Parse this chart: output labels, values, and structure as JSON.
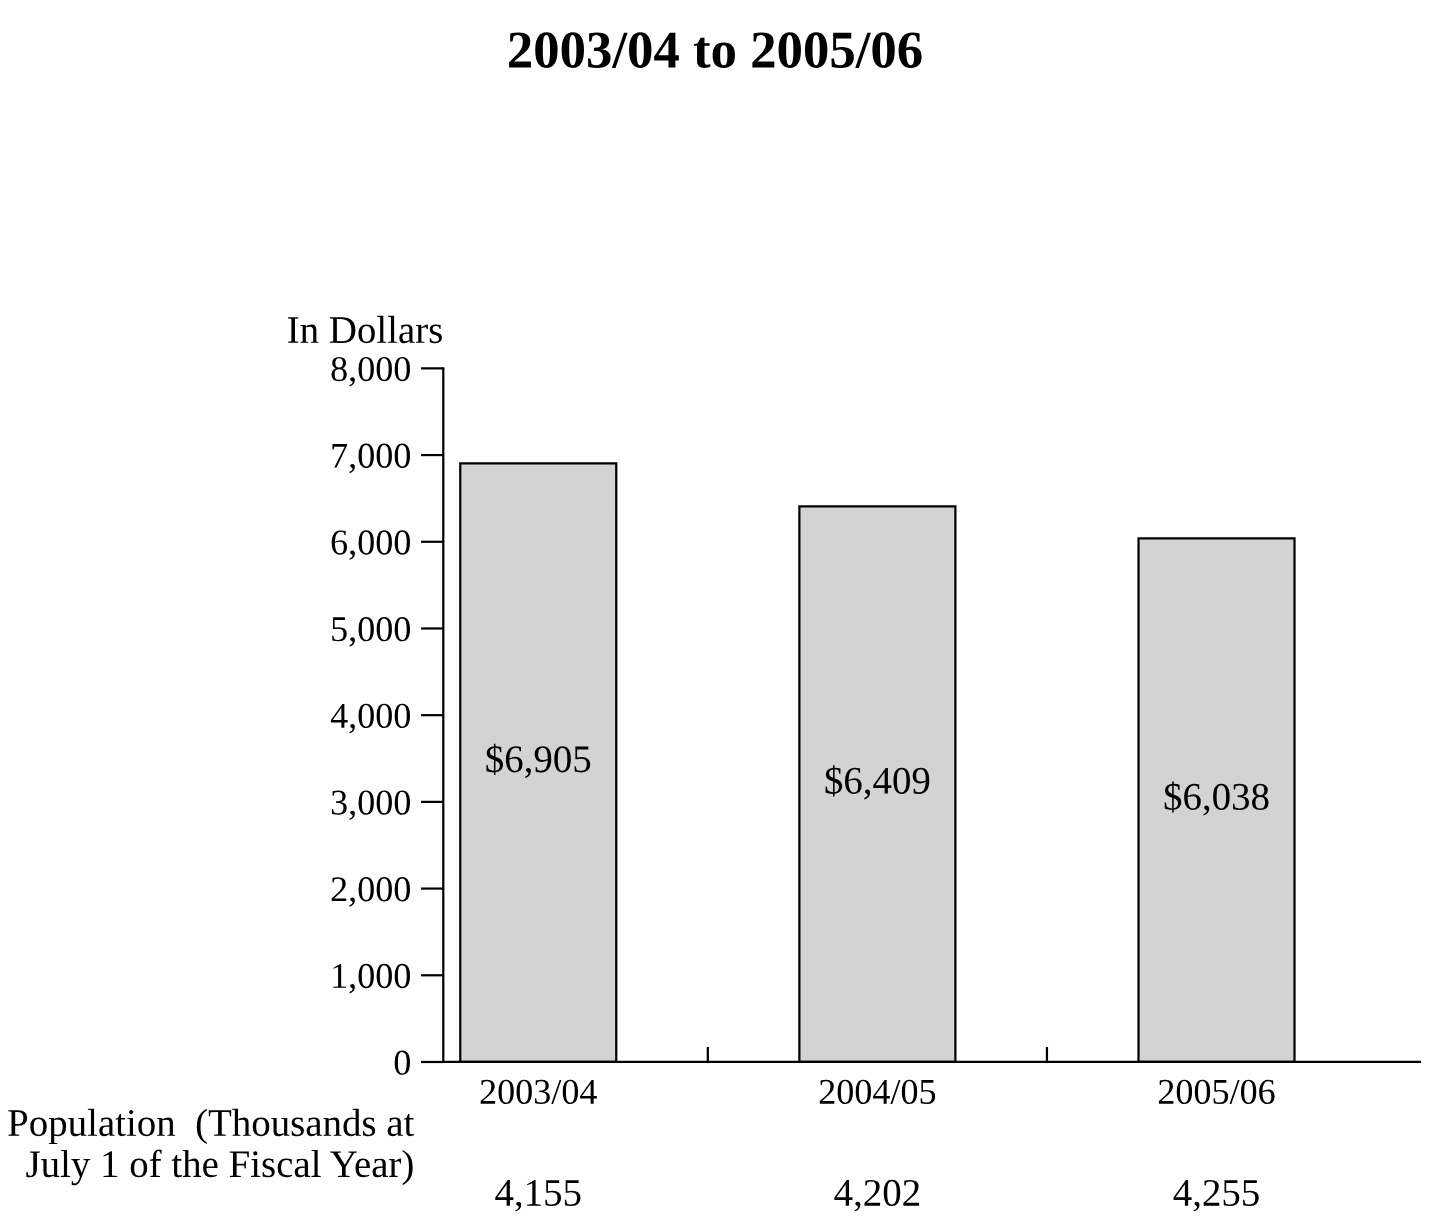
{
  "chart_data": {
    "type": "bar",
    "title": "2003/04 to 2005/06",
    "ylabel": "In Dollars",
    "categories": [
      "2003/04",
      "2004/05",
      "2005/06"
    ],
    "values": [
      6905,
      6409,
      6038
    ],
    "color": "#d3d3d3",
    "value_labels": [
      "$6,905",
      "$6,409",
      "$6,038"
    ],
    "ylim": [
      0,
      8000
    ],
    "yticks": [
      {
        "value": 0,
        "label": "0"
      },
      {
        "value": 1000,
        "label": "1,000"
      },
      {
        "value": 2000,
        "label": "2,000"
      },
      {
        "value": 3000,
        "label": "3,000"
      },
      {
        "value": 4000,
        "label": "4,000"
      },
      {
        "value": 5000,
        "label": "5,000"
      },
      {
        "value": 6000,
        "label": "6,000"
      },
      {
        "value": 7000,
        "label": "7,000"
      },
      {
        "value": 8000,
        "label": "8,000"
      }
    ],
    "grid": false,
    "legend": false,
    "annotations": [
      "Population  (Thousands at\nJuly 1 of the Fiscal Year)",
      "4,155",
      "4,202",
      "4,255"
    ]
  }
}
